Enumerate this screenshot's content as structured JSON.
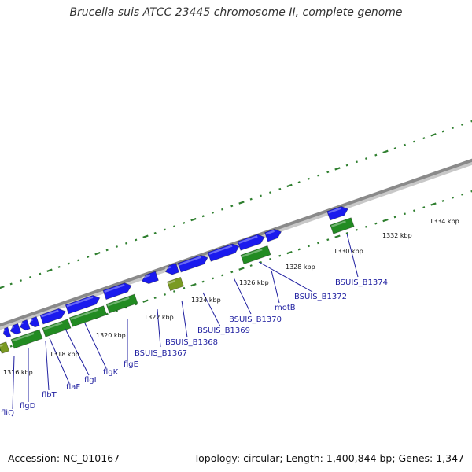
{
  "title": "Brucella suis ATCC 23445 chromosome II, complete genome",
  "footer": {
    "accession": "Accession: NC_010167",
    "stats": "Topology: circular; Length: 1,400,844 bp; Genes: 1,347"
  },
  "colors": {
    "backbone": "#8a8a8a",
    "forward_gene": "#1a1aee",
    "reverse_gene": "#228b22",
    "pseudo_gene": "#7a9a22",
    "tick": "#2f7f2f",
    "label": "#1f1fa0"
  },
  "scale_labels": [
    "1316 kbp",
    "1318 kbp",
    "1320 kbp",
    "1322 kbp",
    "1324 kbp",
    "1326 kbp",
    "1328 kbp",
    "1330 kbp",
    "1332 kbp",
    "1334 kbp"
  ],
  "gene_labels": [
    "fliQ",
    "flgD",
    "flbT",
    "flaF",
    "flgL",
    "flgK",
    "flgE",
    "BSUIS_B1367",
    "BSUIS_B1368",
    "BSUIS_B1369",
    "BSUIS_B1370",
    "motB",
    "BSUIS_B1372",
    "BSUIS_B1374"
  ]
}
